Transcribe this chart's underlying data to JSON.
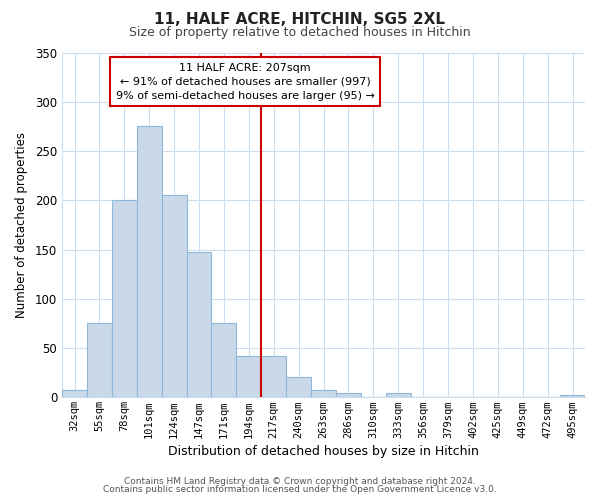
{
  "title": "11, HALF ACRE, HITCHIN, SG5 2XL",
  "subtitle": "Size of property relative to detached houses in Hitchin",
  "xlabel": "Distribution of detached houses by size in Hitchin",
  "ylabel": "Number of detached properties",
  "bin_labels": [
    "32sqm",
    "55sqm",
    "78sqm",
    "101sqm",
    "124sqm",
    "147sqm",
    "171sqm",
    "194sqm",
    "217sqm",
    "240sqm",
    "263sqm",
    "286sqm",
    "310sqm",
    "333sqm",
    "356sqm",
    "379sqm",
    "402sqm",
    "425sqm",
    "449sqm",
    "472sqm",
    "495sqm"
  ],
  "bar_heights": [
    7,
    75,
    200,
    275,
    205,
    147,
    75,
    42,
    42,
    21,
    7,
    4,
    0,
    4,
    0,
    0,
    0,
    0,
    0,
    0,
    2
  ],
  "bar_color": "#c9d9ea",
  "bar_edgecolor": "#8fb8d8",
  "ylim": [
    0,
    350
  ],
  "yticks": [
    0,
    50,
    100,
    150,
    200,
    250,
    300,
    350
  ],
  "property_label": "11 HALF ACRE: 207sqm",
  "annotation_line1": "← 91% of detached houses are smaller (997)",
  "annotation_line2": "9% of semi-detached houses are larger (95) →",
  "vline_color": "#cc0000",
  "footer1": "Contains HM Land Registry data © Crown copyright and database right 2024.",
  "footer2": "Contains public sector information licensed under the Open Government Licence v3.0.",
  "grid_color": "#ccddee",
  "background_color": "#ffffff",
  "title_color": "#222222",
  "subtitle_color": "#444444"
}
